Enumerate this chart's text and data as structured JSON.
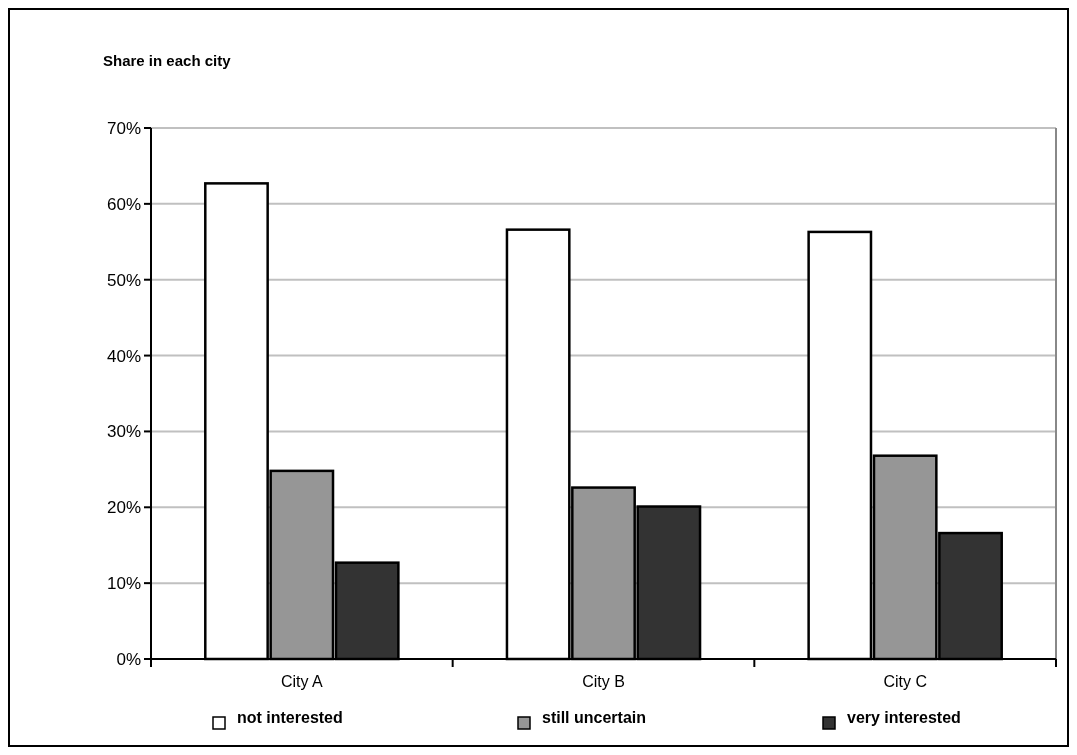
{
  "chart_data": {
    "type": "bar",
    "title": "Share in each city",
    "categories": [
      "City A",
      "City B",
      "City C"
    ],
    "series": [
      {
        "name": "not interested",
        "color": "#ffffff",
        "values": [
          62.7,
          56.6,
          56.3
        ]
      },
      {
        "name": "still uncertain",
        "color": "#969696",
        "values": [
          24.8,
          22.6,
          26.8
        ]
      },
      {
        "name": "very interested",
        "color": "#333333",
        "values": [
          12.7,
          20.1,
          16.6
        ]
      }
    ],
    "ylim": [
      0,
      70
    ],
    "yticks": [
      {
        "value": 0,
        "label": "0%"
      },
      {
        "value": 10,
        "label": "10%"
      },
      {
        "value": 20,
        "label": "20%"
      },
      {
        "value": 30,
        "label": "30%"
      },
      {
        "value": 40,
        "label": "40%"
      },
      {
        "value": 50,
        "label": "50%"
      },
      {
        "value": 60,
        "label": "60%"
      },
      {
        "value": 70,
        "label": "70%"
      }
    ],
    "grid": "y",
    "legend": "bottom"
  }
}
